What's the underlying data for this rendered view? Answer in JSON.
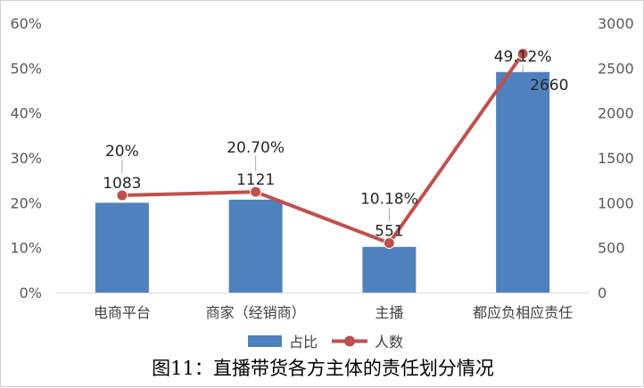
{
  "chart_data": {
    "type": "bar+line",
    "categories": [
      "电商平台",
      "商家（经销商）",
      "主播",
      "都应负相应责任"
    ],
    "series": [
      {
        "name": "占比",
        "type": "bar",
        "axis": "left",
        "values": [
          0.2,
          0.207,
          0.1018,
          0.4912
        ],
        "labels": [
          "20%",
          "20.70%",
          "10.18%",
          "49.12%"
        ],
        "color": "#4F81BD"
      },
      {
        "name": "人数",
        "type": "line",
        "axis": "right",
        "values": [
          1083,
          1121,
          551,
          2660
        ],
        "labels": [
          "1083",
          "1121",
          "551",
          "2660"
        ],
        "color": "#C0504D"
      }
    ],
    "y_left": {
      "ylim": [
        0,
        0.6
      ],
      "ticks": [
        "0%",
        "10%",
        "20%",
        "30%",
        "40%",
        "50%",
        "60%"
      ]
    },
    "y_right": {
      "ylim": [
        0,
        3000
      ],
      "ticks": [
        "0",
        "500",
        "1000",
        "1500",
        "2000",
        "2500",
        "3000"
      ]
    },
    "grid": false,
    "legend": "bottom",
    "caption": "图11：直播带货各方主体的责任划分情况"
  }
}
